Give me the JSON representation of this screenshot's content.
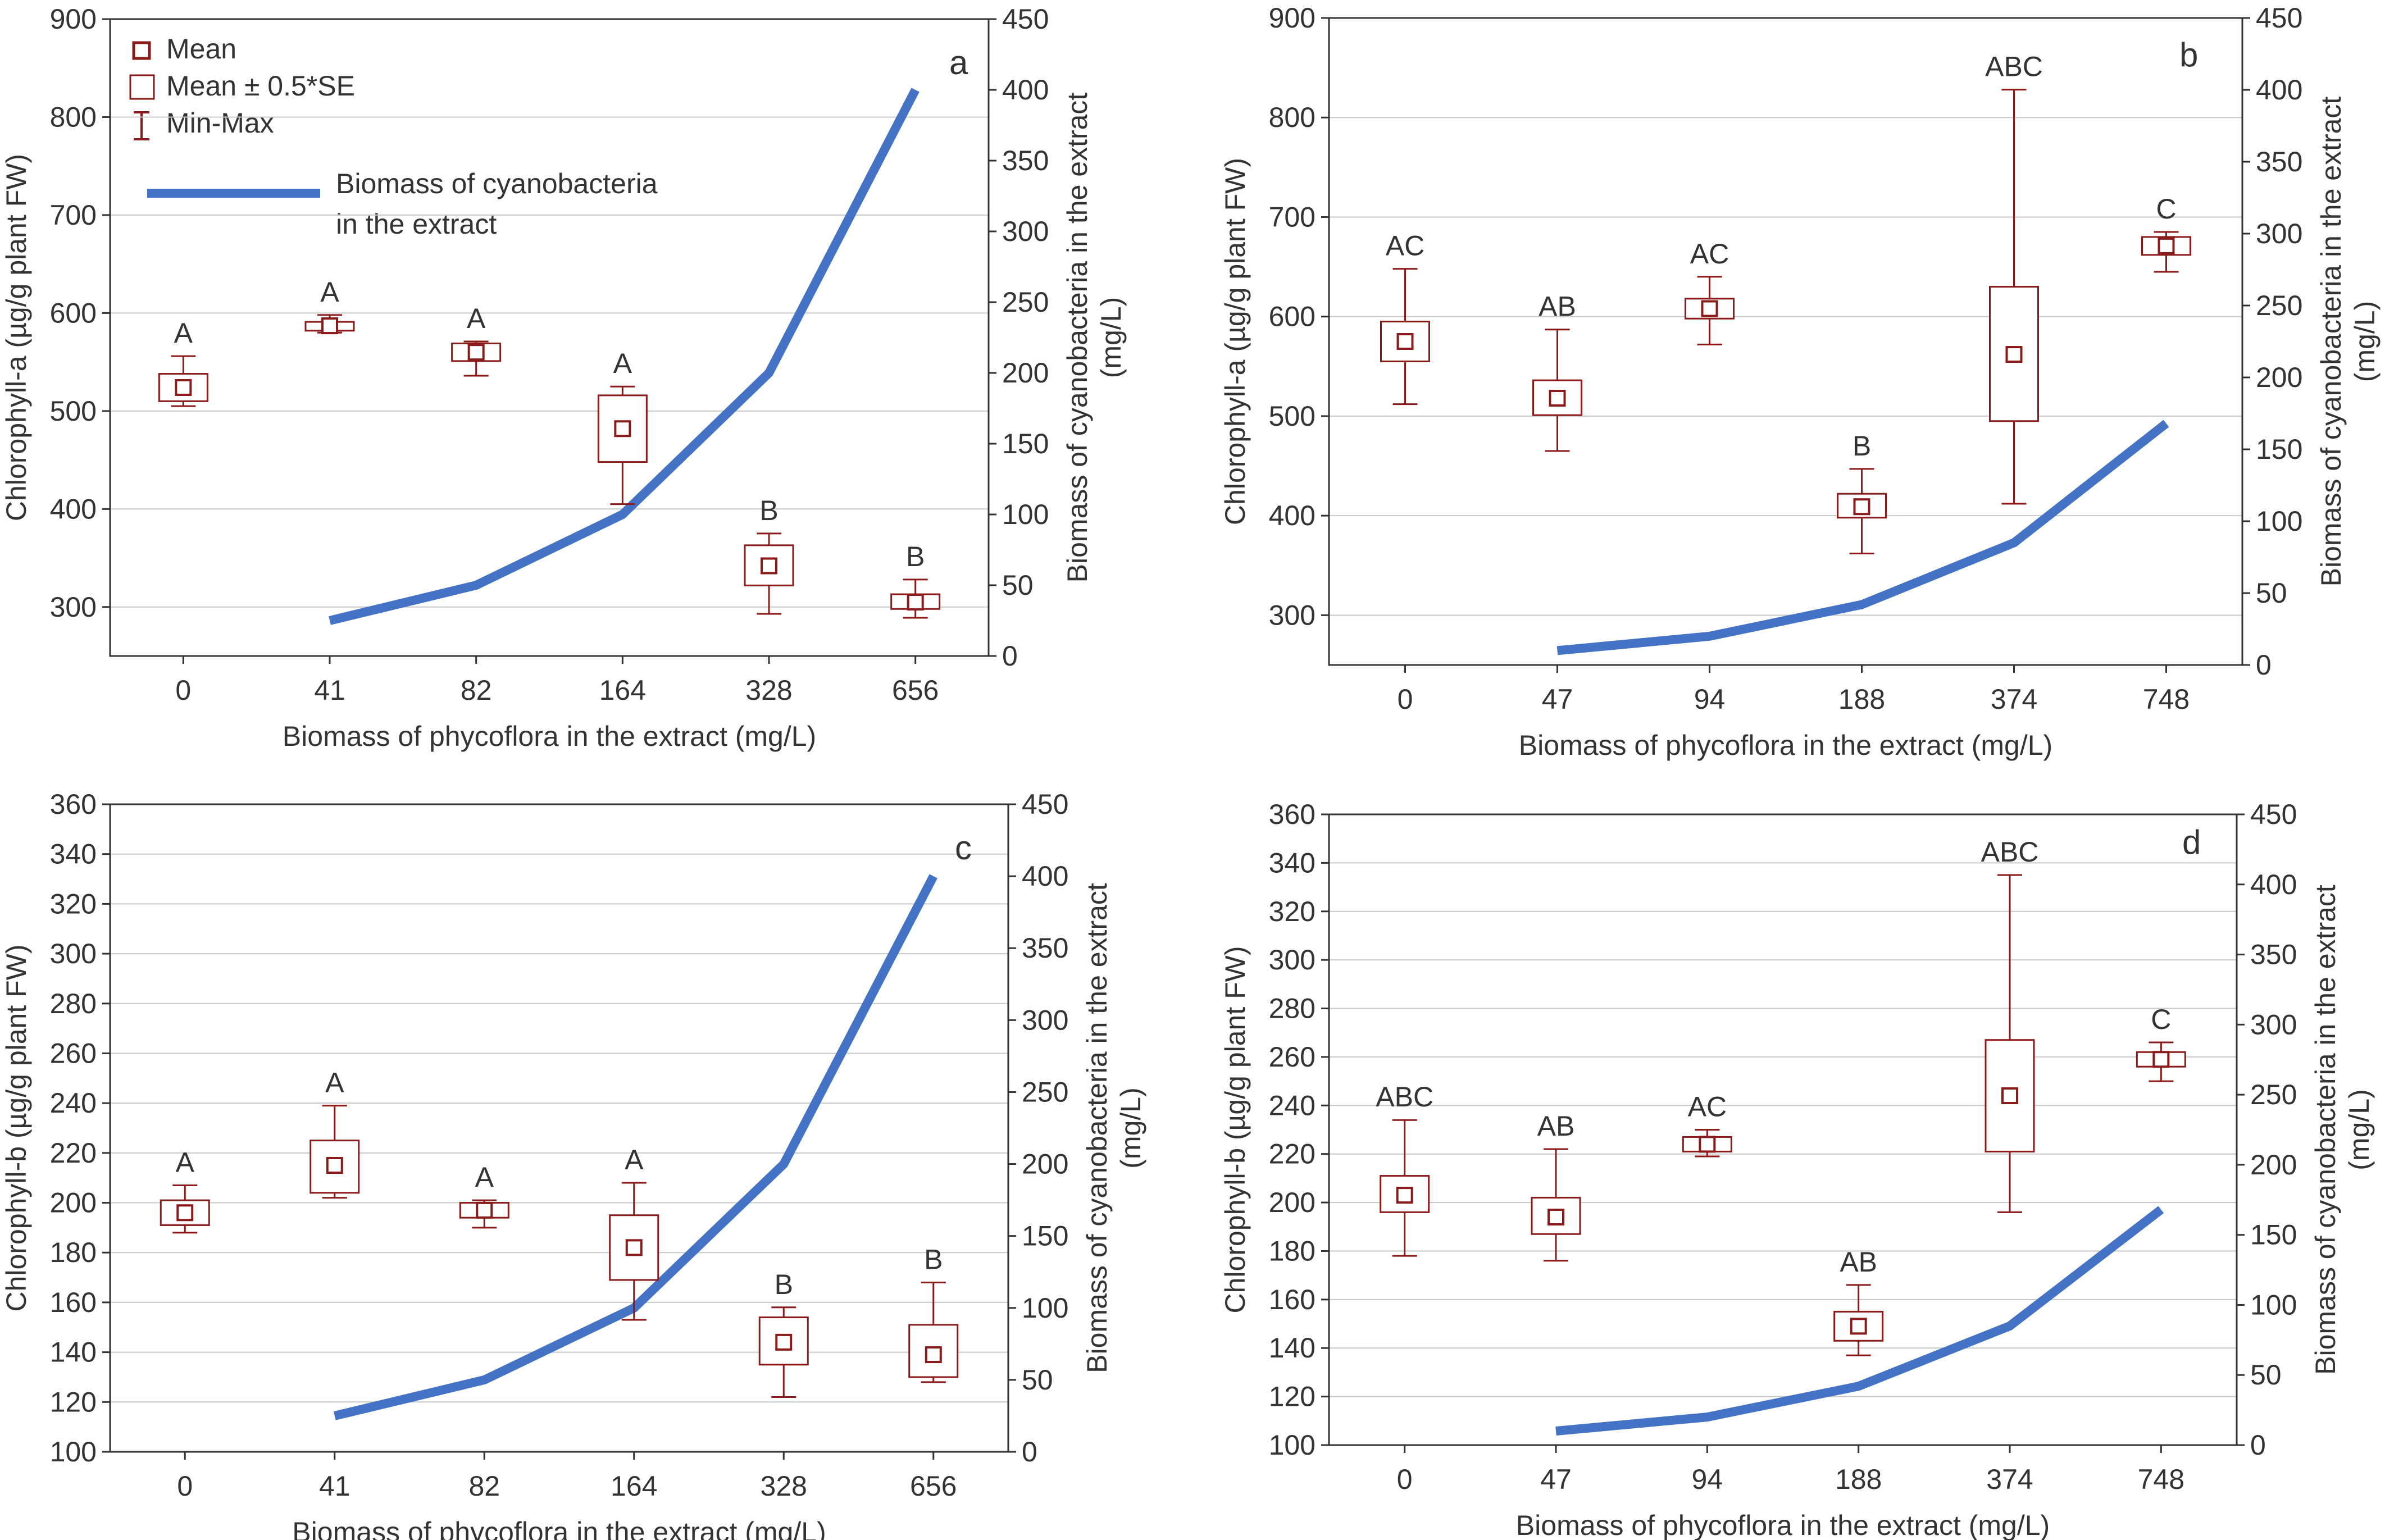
{
  "legend": {
    "mean": "Mean",
    "mean_se": "Mean ± 0.5*SE",
    "min_max": "Min-Max",
    "line_label_1": "Biomass of cyanobacteria",
    "line_label_2": "in the extract"
  },
  "colors": {
    "box": "#8B1A1A",
    "line": "#4472C4",
    "grid": "#C8C8C8",
    "axis": "#333333",
    "text": "#333333"
  },
  "chart_data": [
    {
      "type": "box",
      "panel_label": "a",
      "xlabel": "Biomass of phycoflora in the extract (mg/L)",
      "ylabel": "Chlorophyll-a (µg/g plant FW)",
      "y2label_1": "Biomass of cyanobacteria in the extract",
      "y2label_2": "(mg/L)",
      "categories": [
        "0",
        "41",
        "82",
        "164",
        "328",
        "656"
      ],
      "ylim": [
        250,
        900
      ],
      "yticks": [
        "300",
        "400",
        "500",
        "600",
        "700",
        "800",
        "900"
      ],
      "y2lim": [
        0,
        450
      ],
      "y2ticks": [
        "0",
        "50",
        "100",
        "150",
        "200",
        "250",
        "300",
        "350",
        "400",
        "450"
      ],
      "series": [
        {
          "name": "Chlorophyll-a",
          "mean": [
            524,
            587,
            560,
            482,
            342,
            305
          ],
          "se_low": [
            510,
            582,
            551,
            448,
            322,
            298
          ],
          "se_high": [
            538,
            591,
            569,
            516,
            363,
            313
          ],
          "min": [
            505,
            580,
            536,
            405,
            293,
            289
          ],
          "max": [
            556,
            598,
            571,
            525,
            375,
            328
          ],
          "letters": [
            "A",
            "A",
            "A",
            "A",
            "B",
            "B"
          ]
        },
        {
          "name": "Biomass of cyanobacteria in the extract",
          "axis": "right",
          "x_start": 1,
          "values": [
            25,
            50,
            100,
            200,
            400
          ]
        }
      ]
    },
    {
      "type": "box",
      "panel_label": "b",
      "xlabel": "Biomass of phycoflora in the extract (mg/L)",
      "ylabel": "Chlorophyll-a (µg/g plant FW)",
      "y2label_1": "Biomass of cyanobacteria in the extract",
      "y2label_2": "(mg/L)",
      "categories": [
        "0",
        "47",
        "94",
        "188",
        "374",
        "748"
      ],
      "ylim": [
        250,
        900
      ],
      "yticks": [
        "300",
        "400",
        "500",
        "600",
        "700",
        "800",
        "900"
      ],
      "y2lim": [
        0,
        450
      ],
      "y2ticks": [
        "0",
        "50",
        "100",
        "150",
        "200",
        "250",
        "300",
        "350",
        "400",
        "450"
      ],
      "series": [
        {
          "name": "Chlorophyll-a",
          "mean": [
            575,
            518,
            608,
            409,
            562,
            671
          ],
          "se_low": [
            555,
            501,
            598,
            398,
            495,
            662
          ],
          "se_high": [
            595,
            536,
            618,
            422,
            630,
            680
          ],
          "min": [
            512,
            465,
            572,
            362,
            412,
            645
          ],
          "max": [
            648,
            587,
            640,
            447,
            828,
            685
          ],
          "letters": [
            "AC",
            "AB",
            "AC",
            "B",
            "ABC",
            "C"
          ]
        },
        {
          "name": "Biomass of cyanobacteria in the extract",
          "axis": "right",
          "x_start": 1,
          "values": [
            10,
            20,
            42,
            85,
            168
          ]
        }
      ]
    },
    {
      "type": "box",
      "panel_label": "c",
      "xlabel": "Biomass of phycoflora in the extract (mg/L)",
      "ylabel": "Chlorophyll-b (µg/g plant FW)",
      "y2label_1": "Biomass of cyanobacteria in the extract",
      "y2label_2": "(mg/L)",
      "categories": [
        "0",
        "41",
        "82",
        "164",
        "328",
        "656"
      ],
      "ylim": [
        100,
        360
      ],
      "yticks": [
        "100",
        "120",
        "140",
        "160",
        "180",
        "200",
        "220",
        "240",
        "260",
        "280",
        "300",
        "320",
        "340",
        "360"
      ],
      "y2lim": [
        0,
        450
      ],
      "y2ticks": [
        "0",
        "50",
        "100",
        "150",
        "200",
        "250",
        "300",
        "350",
        "400",
        "450"
      ],
      "series": [
        {
          "name": "Chlorophyll-b",
          "mean": [
            196,
            215,
            197,
            182,
            144,
            139
          ],
          "se_low": [
            191,
            204,
            194,
            169,
            135,
            130
          ],
          "se_high": [
            201,
            225,
            200,
            195,
            154,
            151
          ],
          "min": [
            188,
            202,
            190,
            153,
            122,
            128
          ],
          "max": [
            207,
            239,
            201,
            208,
            158,
            168
          ],
          "letters": [
            "A",
            "A",
            "A",
            "A",
            "B",
            "B"
          ]
        },
        {
          "name": "Biomass of cyanobacteria in the extract",
          "axis": "right",
          "x_start": 1,
          "values": [
            25,
            50,
            100,
            200,
            400
          ]
        }
      ]
    },
    {
      "type": "box",
      "panel_label": "d",
      "xlabel": "Biomass of phycoflora in the extract (mg/L)",
      "ylabel": "Chlorophyll-b (µg/g plant FW)",
      "y2label_1": "Biomass of cyanobacteria in the extract",
      "y2label_2": "(mg/L)",
      "categories": [
        "0",
        "47",
        "94",
        "188",
        "374",
        "748"
      ],
      "ylim": [
        100,
        360
      ],
      "yticks": [
        "100",
        "120",
        "140",
        "160",
        "180",
        "200",
        "220",
        "240",
        "260",
        "280",
        "300",
        "320",
        "340",
        "360"
      ],
      "y2lim": [
        0,
        450
      ],
      "y2ticks": [
        "0",
        "50",
        "100",
        "150",
        "200",
        "250",
        "300",
        "350",
        "400",
        "450"
      ],
      "series": [
        {
          "name": "Chlorophyll-b",
          "mean": [
            203,
            194,
            224,
            149,
            244,
            259
          ],
          "se_low": [
            196,
            187,
            221,
            143,
            221,
            256
          ],
          "se_high": [
            211,
            202,
            227,
            155,
            267,
            262
          ],
          "min": [
            178,
            176,
            219,
            137,
            196,
            250
          ],
          "max": [
            234,
            222,
            230,
            166,
            335,
            266
          ],
          "letters": [
            "ABC",
            "AB",
            "AC",
            "AB",
            "ABC",
            "C"
          ]
        },
        {
          "name": "Biomass of cyanobacteria in the extract",
          "axis": "right",
          "x_start": 1,
          "values": [
            10,
            20,
            42,
            85,
            168
          ]
        }
      ]
    }
  ]
}
